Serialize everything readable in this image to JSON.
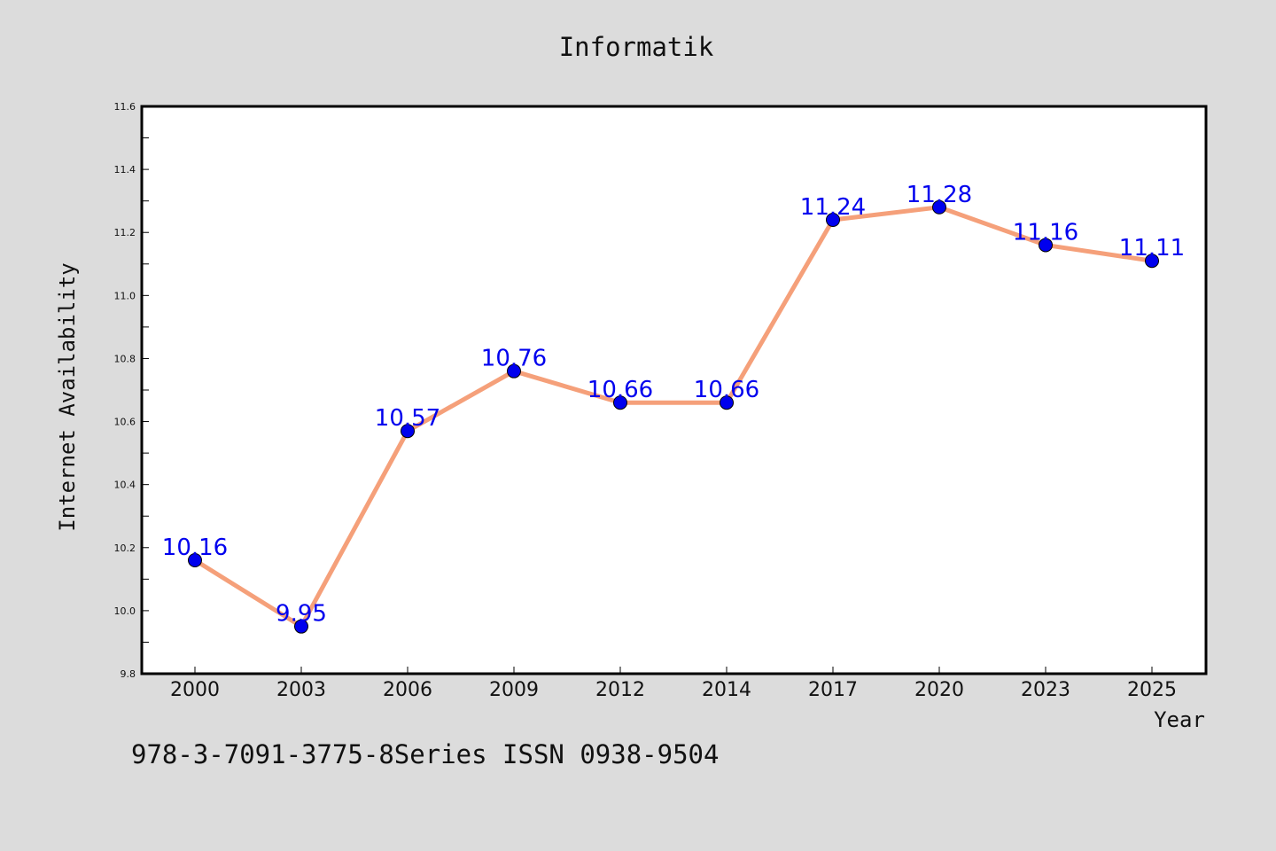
{
  "chart_data": {
    "type": "line",
    "title": "Informatik",
    "xlabel": "Year",
    "ylabel": "Internet Availability",
    "categories": [
      "2000",
      "2003",
      "2006",
      "2009",
      "2012",
      "2014",
      "2017",
      "2020",
      "2023",
      "2025"
    ],
    "series": [
      {
        "values": [
          10.16,
          9.95,
          10.57,
          10.76,
          10.66,
          10.66,
          11.24,
          11.28,
          11.16,
          11.11
        ],
        "line_color": "#f5a07a",
        "marker_color": "#0000ee"
      }
    ],
    "data_labels": [
      "10.16",
      "9.95",
      "10.57",
      "10.76",
      "10.66",
      "10.66",
      "11.24",
      "11.28",
      "11.16",
      "11.11"
    ],
    "ylim": [
      9.8,
      11.6
    ],
    "yticks": [
      9.8,
      10.0,
      10.2,
      10.4,
      10.6,
      10.8,
      11.0,
      11.2,
      11.4,
      11.6
    ],
    "ytick_labels": [
      "9.8",
      "10.0",
      "10.2",
      "10.4",
      "10.6",
      "10.8",
      "11.0",
      "11.2",
      "11.4",
      "11.6"
    ],
    "grid": false,
    "legend": false
  },
  "footer_text": "978-3-7091-3775-8Series ISSN 0938-9504"
}
